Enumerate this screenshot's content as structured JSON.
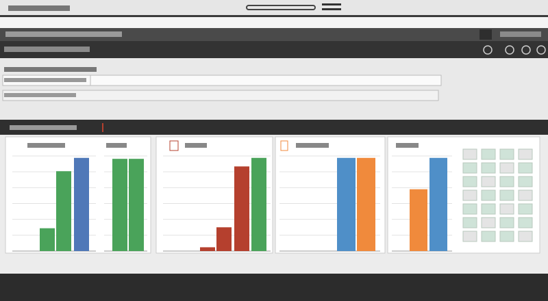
{
  "chart_data": [
    {
      "type": "bar",
      "ylim": [
        0,
        100
      ],
      "values": [
        24,
        84,
        98
      ],
      "colors": [
        "#4aa35a",
        "#4aa35a",
        "#4f78b8"
      ]
    },
    {
      "type": "bar",
      "ylim": [
        0,
        100
      ],
      "values": [
        97,
        97
      ],
      "colors": [
        "#4aa35a",
        "#4aa35a"
      ]
    },
    {
      "type": "bar",
      "ylim": [
        0,
        100
      ],
      "values": [
        4,
        25,
        89,
        98
      ],
      "colors": [
        "#b5402e",
        "#b5402e",
        "#b5402e",
        "#4aa35a"
      ]
    },
    {
      "type": "bar",
      "ylim": [
        0,
        100
      ],
      "values": [
        98,
        98
      ],
      "colors": [
        "#4f8fc8",
        "#f08a3c"
      ]
    },
    {
      "type": "bar",
      "ylim": [
        0,
        100
      ],
      "values": [
        65,
        98
      ],
      "colors": [
        "#f08a3c",
        "#4f8fc8"
      ]
    }
  ]
}
